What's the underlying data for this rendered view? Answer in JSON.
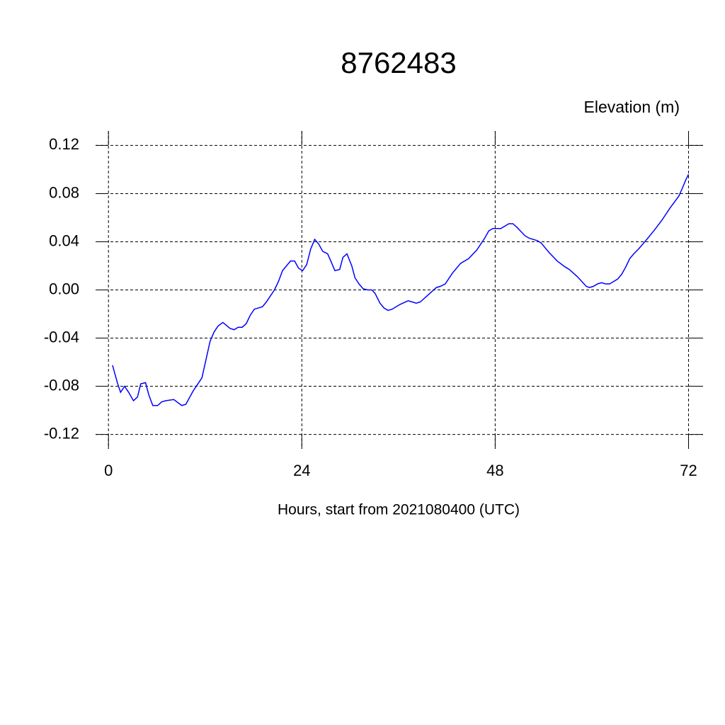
{
  "chart_data": {
    "type": "line",
    "title": "8762483",
    "y_label": "Elevation (m)",
    "x_label": "Hours, start from 2021080400 (UTC)",
    "xlim": [
      -1.6,
      73.8
    ],
    "ylim": [
      -0.132,
      0.132
    ],
    "xticks": [
      0,
      24,
      48,
      72
    ],
    "yticks": [
      0.12,
      0.08,
      0.04,
      {
        "value": 0,
        "label": "0.00"
      },
      -0.04,
      -0.08,
      -0.12
    ],
    "grid": true,
    "x": [
      0.5,
      1.1,
      1.5,
      2.0,
      2.5,
      3.1,
      3.6,
      4.0,
      4.6,
      5.0,
      5.5,
      6.1,
      6.6,
      7.1,
      8.1,
      9.1,
      9.6,
      10.5,
      11.6,
      12.6,
      13.1,
      13.6,
      14.2,
      15.1,
      15.6,
      16.1,
      16.6,
      17.1,
      17.6,
      18.1,
      19.1,
      19.6,
      20.6,
      21.1,
      21.6,
      22.6,
      23.1,
      23.6,
      24.1,
      24.6,
      25.1,
      25.6,
      26.1,
      26.6,
      27.2,
      27.6,
      28.1,
      28.7,
      29.1,
      29.6,
      30.2,
      30.6,
      31.1,
      31.6,
      32.2,
      32.7,
      33.1,
      33.7,
      34.2,
      34.7,
      35.2,
      36.2,
      37.2,
      37.7,
      38.2,
      38.7,
      39.7,
      40.7,
      41.2,
      41.8,
      42.7,
      43.7,
      44.7,
      45.7,
      46.7,
      47.2,
      47.7,
      48.7,
      49.7,
      50.2,
      50.7,
      51.7,
      52.2,
      53.2,
      53.7,
      54.7,
      55.7,
      56.7,
      57.2,
      58.2,
      59.3,
      59.7,
      60.2,
      60.7,
      61.2,
      61.7,
      62.2,
      62.7,
      63.2,
      63.7,
      64.2,
      64.7,
      65.2,
      65.8,
      66.7,
      67.8,
      68.7,
      69.7,
      70.8,
      71.2,
      71.7,
      72.0
    ],
    "series": [
      {
        "name": "Elevation",
        "color": "#0000ff",
        "values": [
          -0.0625,
          -0.077,
          -0.085,
          -0.08,
          -0.085,
          -0.092,
          -0.089,
          -0.078,
          -0.077,
          -0.087,
          -0.096,
          -0.096,
          -0.093,
          -0.092,
          -0.091,
          -0.096,
          -0.095,
          -0.084,
          -0.073,
          -0.043,
          -0.035,
          -0.03,
          -0.027,
          -0.032,
          -0.033,
          -0.031,
          -0.031,
          -0.028,
          -0.021,
          -0.016,
          -0.014,
          -0.01,
          0.0,
          0.007,
          0.016,
          0.024,
          0.024,
          0.018,
          0.016,
          0.021,
          0.034,
          0.042,
          0.038,
          0.032,
          0.03,
          0.024,
          0.016,
          0.017,
          0.027,
          0.03,
          0.02,
          0.01,
          0.005,
          0.001,
          0.0,
          0.0,
          -0.003,
          -0.011,
          -0.015,
          -0.017,
          -0.016,
          -0.012,
          -0.009,
          -0.01,
          -0.011,
          -0.01,
          -0.004,
          0.002,
          0.003,
          0.005,
          0.014,
          0.022,
          0.026,
          0.033,
          0.043,
          0.049,
          0.051,
          0.051,
          0.055,
          0.055,
          0.052,
          0.045,
          0.043,
          0.041,
          0.039,
          0.031,
          0.024,
          0.019,
          0.017,
          0.011,
          0.003,
          0.002,
          0.003,
          0.005,
          0.006,
          0.005,
          0.005,
          0.007,
          0.009,
          0.013,
          0.019,
          0.026,
          0.03,
          0.034,
          0.041,
          0.05,
          0.058,
          0.068,
          0.078,
          0.084,
          0.092,
          0.096
        ]
      }
    ]
  }
}
